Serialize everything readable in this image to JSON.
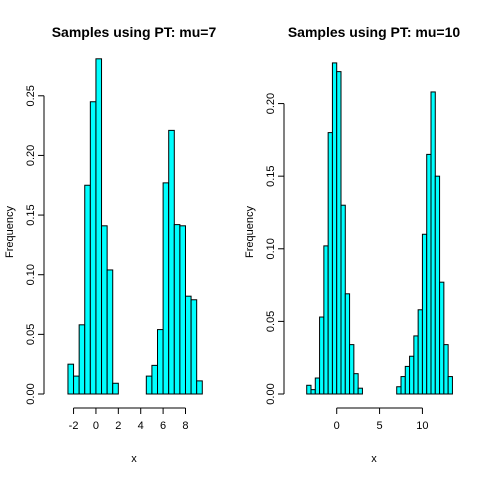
{
  "colors": {
    "bar_fill": "#00FFFF",
    "bar_stroke": "#000000"
  },
  "chart_data": [
    {
      "type": "bar",
      "title": "Samples using PT: mu=7",
      "xlabel": "x",
      "ylabel": "Frequency",
      "xlim": [
        -3.3,
        10.1
      ],
      "ylim": [
        0,
        0.28
      ],
      "xticks": [
        -2,
        0,
        2,
        4,
        6,
        8
      ],
      "yticks": [
        0.0,
        0.05,
        0.1,
        0.15,
        0.2,
        0.25
      ],
      "ytick_labels": [
        "0.00",
        "0.05",
        "0.10",
        "0.15",
        "0.20",
        "0.25"
      ],
      "bin_start": -2.5,
      "bin_width": 0.5,
      "values": [
        0.025,
        0.015,
        0.058,
        0.175,
        0.245,
        0.281,
        0.141,
        0.104,
        0.009,
        0,
        0,
        0,
        0,
        0,
        0.015,
        0.024,
        0.054,
        0.177,
        0.221,
        0.142,
        0.141,
        0.082,
        0.079,
        0.011
      ]
    },
    {
      "type": "bar",
      "title": "Samples using PT: mu=10",
      "xlabel": "x",
      "ylabel": "Frequency",
      "xlim": [
        -4.4,
        13.1
      ],
      "ylim": [
        0,
        0.23
      ],
      "xticks": [
        0,
        5,
        10
      ],
      "yticks": [
        0.0,
        0.05,
        0.1,
        0.15,
        0.2
      ],
      "ytick_labels": [
        "0.00",
        "0.05",
        "0.10",
        "0.15",
        "0.20"
      ],
      "bin_start": -3.5,
      "bin_width": 0.5,
      "values": [
        0.006,
        0.003,
        0.011,
        0.053,
        0.102,
        0.18,
        0.228,
        0.222,
        0.13,
        0.069,
        0.034,
        0.014,
        0.004,
        0,
        0,
        0,
        0,
        0,
        0,
        0,
        0,
        0.005,
        0.012,
        0.019,
        0.026,
        0.04,
        0.058,
        0.11,
        0.165,
        0.208,
        0.15,
        0.077,
        0.034,
        0.012
      ]
    }
  ]
}
